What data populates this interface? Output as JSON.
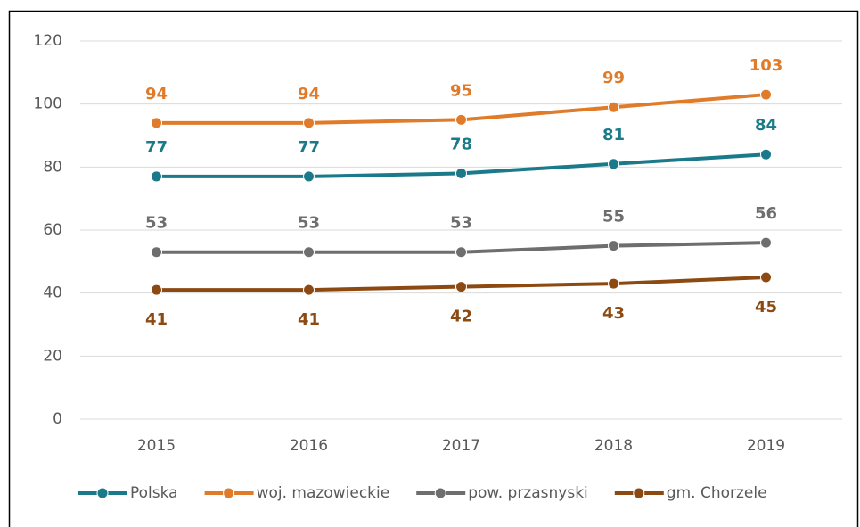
{
  "chart_data": {
    "type": "line",
    "categories": [
      "2015",
      "2016",
      "2017",
      "2018",
      "2019"
    ],
    "series": [
      {
        "name": "Polska",
        "color": "#1b7a8a",
        "values": [
          77,
          77,
          78,
          81,
          84
        ]
      },
      {
        "name": "woj. mazowieckie",
        "color": "#e07b2a",
        "values": [
          94,
          94,
          95,
          99,
          103
        ]
      },
      {
        "name": "pow. przasnyski",
        "color": "#6e6e6e",
        "values": [
          53,
          53,
          53,
          55,
          56
        ]
      },
      {
        "name": "gm. Chorzele",
        "color": "#8c4a12",
        "values": [
          41,
          41,
          42,
          43,
          45
        ]
      }
    ],
    "ylim": [
      0,
      120
    ],
    "yticks": [
      0,
      20,
      40,
      60,
      80,
      100,
      120
    ],
    "grid": true,
    "legend": "bottom"
  }
}
